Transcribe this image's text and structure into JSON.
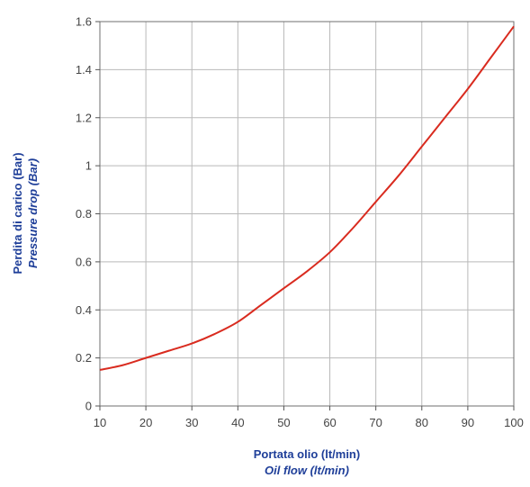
{
  "chart_data": {
    "type": "line",
    "title": "",
    "xlabel": "Portata olio (lt/min)",
    "xlabel_secondary": "Oil flow (lt/min)",
    "ylabel": "Perdita di carico (Bar)",
    "ylabel_secondary": "Pressure drop (Bar)",
    "xlim": [
      10,
      100
    ],
    "ylim": [
      0,
      1.6
    ],
    "x_ticks": [
      "10",
      "20",
      "30",
      "40",
      "50",
      "60",
      "70",
      "80",
      "90",
      "100"
    ],
    "y_ticks": [
      "0",
      "0.2",
      "0.4",
      "0.6",
      "0.8",
      "1",
      "1.2",
      "1.4",
      "1.6"
    ],
    "grid": true,
    "legend": "none",
    "line_color": "#d92b1f",
    "grid_color": "#b9b9b9",
    "series": [
      {
        "x": [
          10,
          15,
          20,
          25,
          30,
          35,
          40,
          45,
          50,
          55,
          60,
          65,
          70,
          75,
          80,
          85,
          90,
          95,
          100
        ],
        "values": [
          0.15,
          0.17,
          0.2,
          0.23,
          0.26,
          0.3,
          0.35,
          0.42,
          0.49,
          0.56,
          0.64,
          0.74,
          0.85,
          0.96,
          1.08,
          1.2,
          1.32,
          1.45,
          1.58
        ]
      }
    ]
  }
}
